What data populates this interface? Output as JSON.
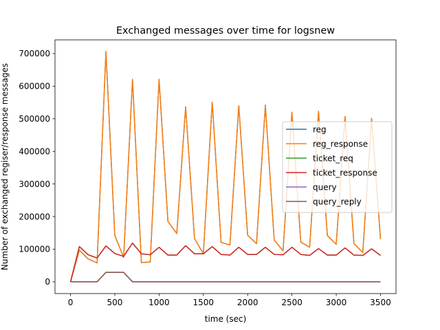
{
  "chart_data": {
    "type": "line",
    "title": "Exchanged messages over time for  logsnew",
    "xlabel": "time (sec)",
    "ylabel": "Number of exchanged regiser/response messages",
    "xlim": [
      -175,
      3675
    ],
    "ylim": [
      -36000,
      742000
    ],
    "xticks": [
      0,
      500,
      1000,
      1500,
      2000,
      2500,
      3000,
      3500
    ],
    "yticks": [
      0,
      100000,
      200000,
      300000,
      400000,
      500000,
      600000,
      700000
    ],
    "grid": false,
    "legend_position": "center-right",
    "x": [
      0,
      100,
      200,
      300,
      400,
      500,
      600,
      700,
      800,
      900,
      1000,
      1100,
      1200,
      1300,
      1400,
      1500,
      1600,
      1700,
      1800,
      1900,
      2000,
      2100,
      2200,
      2300,
      2400,
      2500,
      2600,
      2700,
      2800,
      2900,
      3000,
      3100,
      3200,
      3300,
      3400,
      3500
    ],
    "series": [
      {
        "name": "reg",
        "color": "#1f77b4",
        "values": [
          0,
          97000,
          70000,
          58000,
          706000,
          143000,
          75000,
          621000,
          59000,
          61000,
          621000,
          185000,
          148000,
          537000,
          133000,
          86000,
          551000,
          121000,
          113000,
          540000,
          143000,
          117000,
          542000,
          128000,
          95000,
          520000,
          122000,
          106000,
          523000,
          142000,
          115000,
          507000,
          117000,
          90000,
          501000,
          131000
        ]
      },
      {
        "name": "reg_response",
        "color": "#ff7f0e",
        "values": [
          0,
          97000,
          70000,
          58000,
          706000,
          143000,
          75000,
          621000,
          59000,
          61000,
          621000,
          185000,
          148000,
          537000,
          133000,
          86000,
          551000,
          121000,
          113000,
          540000,
          143000,
          117000,
          542000,
          128000,
          95000,
          520000,
          122000,
          106000,
          523000,
          142000,
          115000,
          507000,
          117000,
          90000,
          501000,
          131000
        ]
      },
      {
        "name": "ticket_req",
        "color": "#2ca02c",
        "values": [
          0,
          108000,
          83000,
          73000,
          110000,
          87000,
          78000,
          119000,
          86000,
          83000,
          106000,
          82000,
          82000,
          111000,
          86000,
          86000,
          108000,
          84000,
          82000,
          106000,
          84000,
          84000,
          106000,
          84000,
          83000,
          106000,
          84000,
          81000,
          102000,
          82000,
          82000,
          104000,
          82000,
          81000,
          101000,
          81000
        ]
      },
      {
        "name": "ticket_response",
        "color": "#d62728",
        "values": [
          0,
          108000,
          83000,
          73000,
          110000,
          87000,
          78000,
          119000,
          86000,
          83000,
          106000,
          82000,
          82000,
          111000,
          86000,
          86000,
          108000,
          84000,
          82000,
          106000,
          84000,
          84000,
          106000,
          84000,
          83000,
          106000,
          84000,
          81000,
          102000,
          82000,
          82000,
          104000,
          82000,
          81000,
          101000,
          81000
        ]
      },
      {
        "name": "query",
        "color": "#9467bd",
        "values": [
          0,
          0,
          0,
          0,
          29000,
          29000,
          29000,
          0,
          0,
          0,
          0,
          0,
          0,
          0,
          0,
          0,
          0,
          0,
          0,
          0,
          0,
          0,
          0,
          0,
          0,
          0,
          0,
          0,
          0,
          0,
          0,
          0,
          0,
          0,
          0,
          0
        ]
      },
      {
        "name": "query_reply",
        "color": "#8c564b",
        "values": [
          0,
          0,
          0,
          0,
          29000,
          29000,
          29000,
          0,
          0,
          0,
          0,
          0,
          0,
          0,
          0,
          0,
          0,
          0,
          0,
          0,
          0,
          0,
          0,
          0,
          0,
          0,
          0,
          0,
          0,
          0,
          0,
          0,
          0,
          0,
          0,
          0
        ]
      }
    ]
  }
}
